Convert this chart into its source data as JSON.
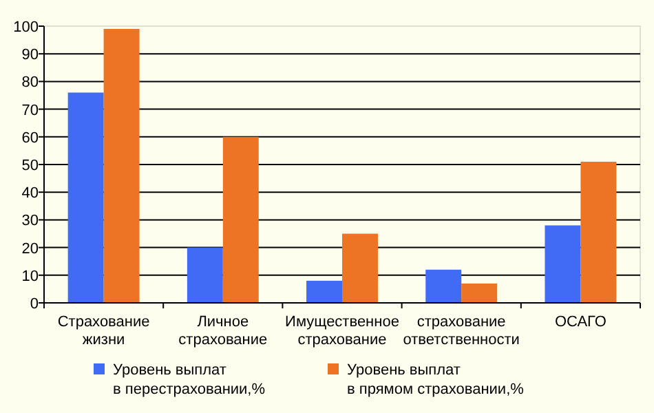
{
  "chart_data": {
    "type": "bar",
    "categories": [
      "Страхование\nжизни",
      "Личное\nстрахование",
      "Имущественное\nстрахование",
      "страхование\nответственности",
      "ОСАГО"
    ],
    "series": [
      {
        "name": "Уровень выплат\nв перестраховании,%",
        "color": "#416bf5",
        "values": [
          76,
          20,
          8,
          12,
          28
        ]
      },
      {
        "name": "Уровень выплат\nв прямом страховании,%",
        "color": "#ec7424",
        "values": [
          99,
          60,
          25,
          7,
          51
        ]
      }
    ],
    "ylim": [
      0,
      100
    ],
    "yticks": [
      0,
      10,
      20,
      30,
      40,
      50,
      60,
      70,
      80,
      90,
      100
    ],
    "grid": "y",
    "legend": "bottom"
  }
}
